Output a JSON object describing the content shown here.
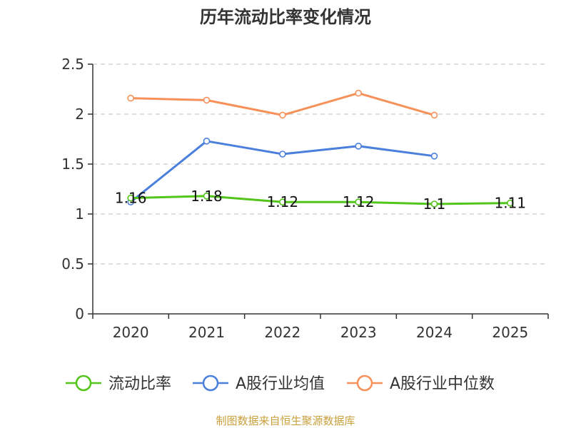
{
  "chart_data": {
    "type": "line",
    "title": "历年流动比率变化情况",
    "categories": [
      "2020",
      "2021",
      "2022",
      "2023",
      "2024",
      "2025"
    ],
    "y_ticks": [
      "0",
      "0.5",
      "1",
      "1.5",
      "2",
      "2.5"
    ],
    "ylim": [
      0,
      2.5
    ],
    "grid": true,
    "legend_position": "bottom",
    "series": [
      {
        "name": "流动比率",
        "color": "#52c41a",
        "values": [
          1.16,
          1.18,
          1.12,
          1.12,
          1.1,
          1.11
        ],
        "labels": [
          "1.16",
          "1.18",
          "1.12",
          "1.12",
          "1.1",
          "1.11"
        ]
      },
      {
        "name": "A股行业均值",
        "color": "#4a7fdc",
        "values": [
          1.12,
          1.73,
          1.6,
          1.68,
          1.58,
          null
        ]
      },
      {
        "name": "A股行业中位数",
        "color": "#f79059",
        "values": [
          2.16,
          2.14,
          1.99,
          2.21,
          1.99,
          null
        ]
      }
    ],
    "source": "制图数据来自恒生聚源数据库"
  }
}
